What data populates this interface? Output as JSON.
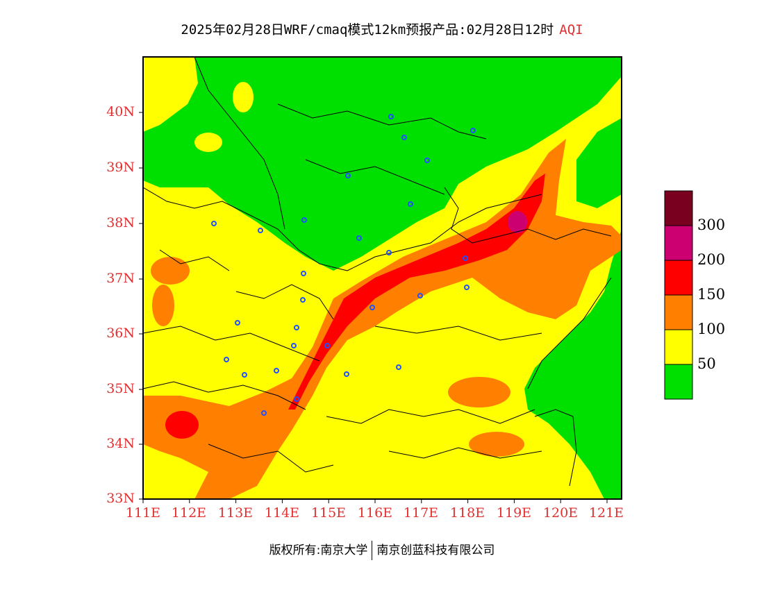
{
  "header": {
    "title": "2025年02月28日WRF/cmaq模式12km预报产品:02月28日12时",
    "product": "AQI"
  },
  "map": {
    "lat_labels": [
      "40N",
      "39N",
      "38N",
      "37N",
      "36N",
      "35N",
      "34N",
      "33N"
    ],
    "lon_labels": [
      "111E",
      "112E",
      "113E",
      "114E",
      "115E",
      "116E",
      "117E",
      "118E",
      "119E",
      "120E",
      "121E"
    ],
    "lat_range": [
      33,
      41
    ],
    "lon_range": [
      111,
      121.3
    ]
  },
  "legend": {
    "labels": [
      "300",
      "200",
      "150",
      "100",
      "50"
    ],
    "colors": [
      "#7a0020",
      "#cc0070",
      "#ff0000",
      "#ff8000",
      "#ffff00",
      "#00e000"
    ]
  },
  "footer": {
    "left": "版权所有:南京大学",
    "right": "南京创蓝科技有限公司"
  }
}
